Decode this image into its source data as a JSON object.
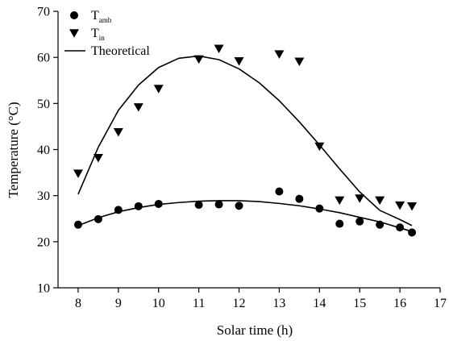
{
  "chart_data": {
    "type": "scatter",
    "title": "",
    "xlabel": "Solar time (h)",
    "ylabel": "Temperature (°C)",
    "xlim": [
      7.5,
      17
    ],
    "ylim": [
      10,
      70
    ],
    "xticks": [
      8,
      9,
      10,
      11,
      12,
      13,
      14,
      15,
      16,
      17
    ],
    "yticks": [
      10,
      20,
      30,
      40,
      50,
      60,
      70
    ],
    "grid": false,
    "legend_position": "top-left",
    "legend": [
      {
        "base": "T",
        "sub": "amb",
        "marker": "circle"
      },
      {
        "base": "T",
        "sub": "in",
        "marker": "triangle-down"
      },
      {
        "base": "Theoretical",
        "sub": "",
        "marker": "line"
      }
    ],
    "series": [
      {
        "name": "Tamb",
        "kind": "points",
        "marker": "circle",
        "x": [
          8,
          8.5,
          9,
          9.5,
          10,
          11,
          11.5,
          12,
          13,
          13.5,
          14,
          14.5,
          15,
          15.5,
          16,
          16.3
        ],
        "y": [
          23.7,
          24.9,
          26.9,
          27.7,
          28.2,
          28.0,
          28.1,
          27.8,
          30.9,
          29.3,
          27.2,
          23.9,
          24.4,
          23.7,
          23.1,
          22.0
        ]
      },
      {
        "name": "Tin",
        "kind": "points",
        "marker": "triangle-down",
        "x": [
          8,
          8.5,
          9,
          9.5,
          10,
          11,
          11.5,
          12,
          13,
          13.5,
          14,
          14.5,
          15,
          15.5,
          16,
          16.3
        ],
        "y": [
          34.8,
          38.2,
          43.8,
          49.2,
          53.2,
          59.6,
          61.9,
          59.2,
          60.7,
          59.1,
          40.7,
          29.0,
          29.4,
          29.0,
          27.9,
          27.7
        ]
      },
      {
        "name": "Theoretical",
        "kind": "line",
        "x": [
          8,
          8.5,
          9,
          9.5,
          10,
          10.5,
          11,
          11.5,
          12,
          12.5,
          13,
          13.5,
          14,
          14.5,
          15,
          15.5,
          16,
          16.3
        ],
        "y": [
          30.3,
          40.5,
          48.5,
          54.0,
          57.8,
          59.8,
          60.3,
          59.5,
          57.5,
          54.5,
          50.6,
          46.0,
          41.0,
          35.8,
          30.8,
          26.8,
          24.8,
          23.5
        ]
      },
      {
        "name": "Theoretical",
        "kind": "line",
        "x": [
          8,
          8.5,
          9,
          9.5,
          10,
          10.5,
          11,
          11.5,
          12,
          12.5,
          13,
          13.5,
          14,
          14.5,
          15,
          15.5,
          16,
          16.3
        ],
        "y": [
          23.5,
          25.2,
          26.5,
          27.4,
          28.1,
          28.5,
          28.8,
          28.9,
          28.9,
          28.7,
          28.3,
          27.8,
          27.1,
          26.3,
          25.3,
          24.3,
          23.0,
          22.2
        ]
      }
    ]
  }
}
